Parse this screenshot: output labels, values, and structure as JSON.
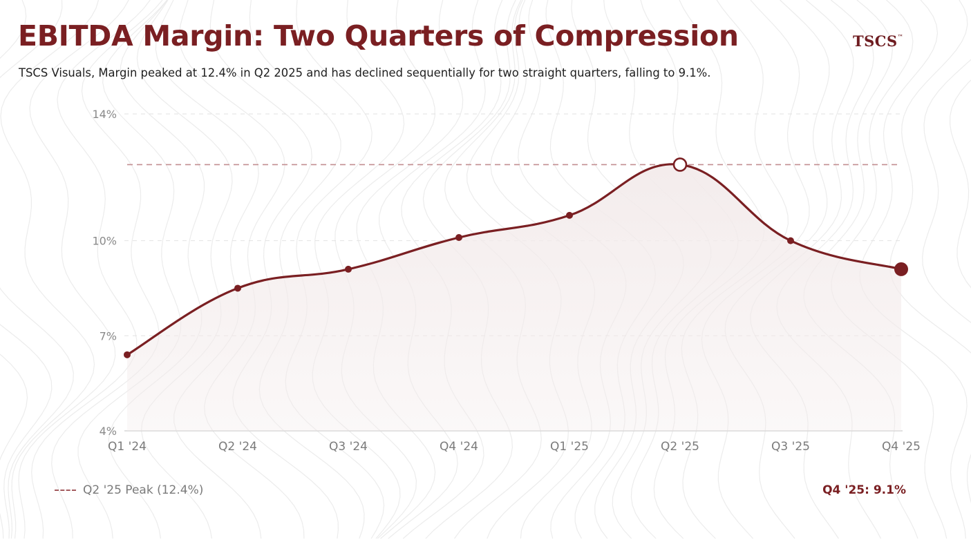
{
  "header": {
    "title": "EBITDA Margin: Two Quarters of Compression",
    "subtitle": "TSCS Visuals, Margin peaked at 12.4% in Q2 2025 and has declined sequentially for two straight quarters, falling to 9.1%.",
    "logo_text": "TSCS",
    "logo_mark": "™"
  },
  "chart_data": {
    "type": "line",
    "categories": [
      "Q1 '24",
      "Q2 '24",
      "Q3 '24",
      "Q4 '24",
      "Q1 '25",
      "Q2 '25",
      "Q3 '25",
      "Q4 '25"
    ],
    "series": [
      {
        "values": [
          6.4,
          8.5,
          9.1,
          10.1,
          10.8,
          12.4,
          10.0,
          9.1
        ]
      }
    ],
    "y_ticks": [
      {
        "value": 14,
        "label": "14%"
      },
      {
        "value": 10,
        "label": "10%"
      },
      {
        "value": 7,
        "label": "7%"
      },
      {
        "value": 4,
        "label": "4%"
      }
    ],
    "ylim": [
      4,
      14
    ],
    "reference_line": {
      "value": 12.4,
      "label": "Q2 '25 Peak (12.4%)"
    },
    "highlight_peak_index": 5,
    "highlight_last_index": 7,
    "callout": "Q4 '25: 9.1%",
    "grid": true,
    "legend_position": "bottom-left",
    "colors": {
      "line": "#7a1f22",
      "reference": "#c28e90",
      "grid": "#e2e2e2",
      "area": "#f3ebeb"
    }
  }
}
